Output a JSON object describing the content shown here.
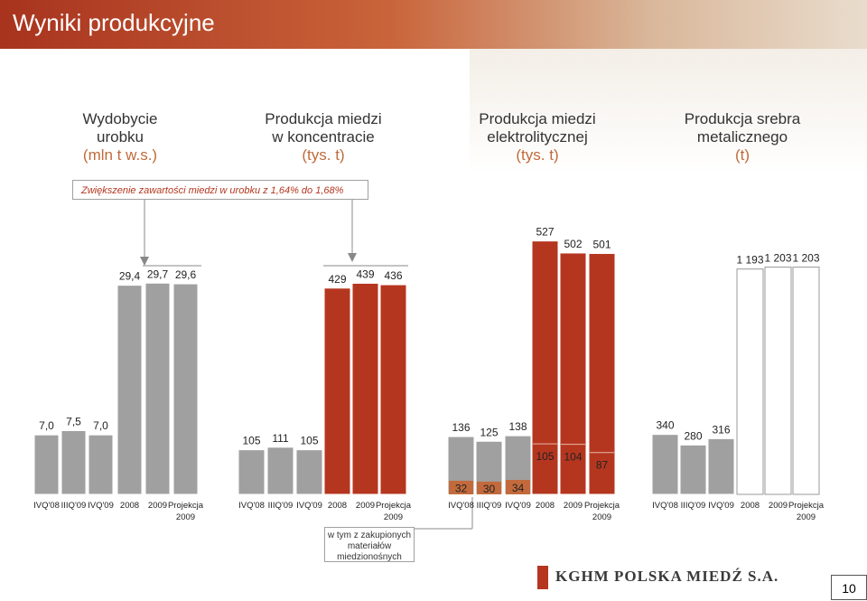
{
  "header": {
    "title": "Wyniki produkcyjne"
  },
  "groups": [
    {
      "title_lines": [
        "Wydobycie",
        "urobku"
      ],
      "unit": "(mln t w.s.)"
    },
    {
      "title_lines": [
        "Produkcja miedzi",
        "w koncentracie"
      ],
      "unit": "(tys. t)"
    },
    {
      "title_lines": [
        "Produkcja miedzi",
        "elektrolitycznej"
      ],
      "unit": "(tys. t)"
    },
    {
      "title_lines": [
        "Produkcja srebra",
        "metalicznego"
      ],
      "unit": "(t)"
    }
  ],
  "note": "Zwiększenie zawartości miedzi w urobku z 1,64% do 1,68%",
  "subnote": [
    "w tym z zakupionych",
    "materiałów",
    "miedzionośnych"
  ],
  "logo": "KGHM POLSKA MIEDŹ S.A.",
  "page_number": "10",
  "colors": {
    "quarter": "#a0a0a0",
    "annual_ore": "#a0a0a0",
    "annual_cu": "#b5361f",
    "annual_ag": "#ffffff",
    "purchased": "#c36a3c",
    "accent": "#b5361f"
  },
  "chart_data": [
    {
      "type": "bar",
      "title": "Wydobycie urobku (mln t w.s.)",
      "categories": [
        "IVQ'08",
        "IIIQ'09",
        "IVQ'09",
        "2008",
        "2009",
        "Projekcja 2009"
      ],
      "values": [
        7.0,
        7.5,
        7.0,
        29.4,
        29.7,
        29.6
      ],
      "labels": [
        "7,0",
        "7,5",
        "7,0",
        "29,4",
        "29,7",
        "29,6"
      ]
    },
    {
      "type": "bar",
      "title": "Produkcja miedzi w koncentracie (tys. t)",
      "categories": [
        "IVQ'08",
        "IIIQ'09",
        "IVQ'09",
        "2008",
        "2009",
        "Projekcja 2009"
      ],
      "values": [
        105,
        111,
        105,
        429,
        439,
        436
      ],
      "labels": [
        "105",
        "111",
        "105",
        "429",
        "439",
        "436"
      ]
    },
    {
      "type": "bar",
      "title": "Produkcja miedzi elektrolitycznej (tys. t)",
      "categories": [
        "IVQ'08",
        "IIIQ'09",
        "IVQ'09",
        "2008",
        "2009",
        "Projekcja 2009"
      ],
      "values": [
        136,
        125,
        138,
        527,
        502,
        501
      ],
      "labels": [
        "136",
        "125",
        "138",
        "527",
        "502",
        "501"
      ],
      "purchased": [
        32,
        30,
        34,
        null,
        null,
        null
      ],
      "purchased_labels": [
        "32",
        "30",
        "34"
      ],
      "annual_subvalues": [
        105,
        104,
        87
      ],
      "annual_sublabels": [
        "105",
        "104",
        "87"
      ]
    },
    {
      "type": "bar",
      "title": "Produkcja srebra metalicznego (t)",
      "categories": [
        "IVQ'08",
        "IIIQ'09",
        "IVQ'09",
        "2008",
        "2009",
        "Projekcja 2009"
      ],
      "values": [
        340,
        280,
        316,
        1193,
        1203,
        1203
      ],
      "labels": [
        "340",
        "280",
        "316",
        "1 193",
        "1 203",
        "1 203"
      ]
    }
  ]
}
